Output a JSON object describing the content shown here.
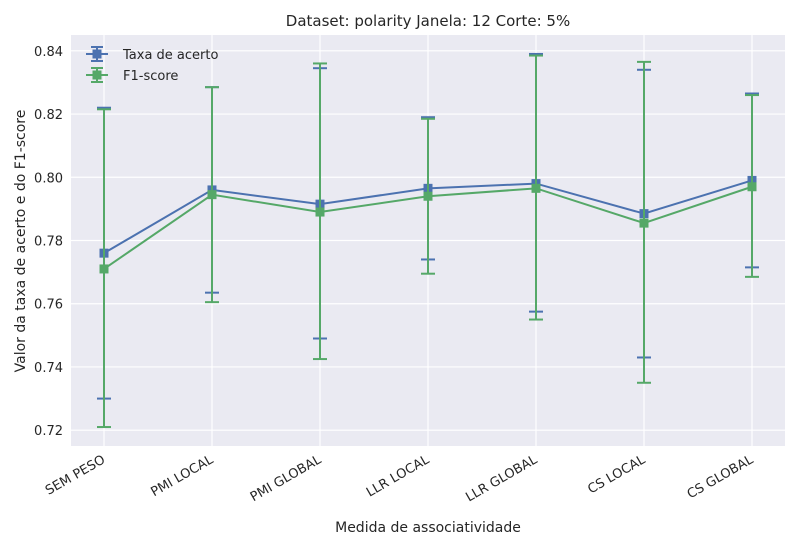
{
  "chart_data": {
    "type": "line",
    "title": "Dataset: polarity Janela: 12 Corte: 5%",
    "xlabel": "Medida de associatividade",
    "ylabel": "Valor da taxa de acerto e do F1-score",
    "categories": [
      "SEM PESO",
      "PMI LOCAL",
      "PMI GLOBAL",
      "LLR LOCAL",
      "LLR GLOBAL",
      "CS LOCAL",
      "CS GLOBAL"
    ],
    "ylim": [
      0.715,
      0.845
    ],
    "yticks": [
      0.72,
      0.74,
      0.76,
      0.78,
      0.8,
      0.82,
      0.84
    ],
    "ytick_labels": [
      "0.72",
      "0.74",
      "0.76",
      "0.78",
      "0.80",
      "0.82",
      "0.84"
    ],
    "grid": true,
    "legend_position": "top-left",
    "series": [
      {
        "name": "Taxa de acerto",
        "color": "#4c72b0",
        "values": [
          0.776,
          0.796,
          0.7915,
          0.7965,
          0.798,
          0.7885,
          0.799
        ],
        "err_low": [
          0.73,
          0.7635,
          0.749,
          0.774,
          0.7575,
          0.743,
          0.7715
        ],
        "err_high": [
          0.822,
          0.8285,
          0.8345,
          0.819,
          0.839,
          0.834,
          0.8265
        ]
      },
      {
        "name": "F1-score",
        "color": "#55a868",
        "values": [
          0.771,
          0.7945,
          0.789,
          0.794,
          0.7965,
          0.7855,
          0.797
        ],
        "err_low": [
          0.721,
          0.7605,
          0.7425,
          0.7695,
          0.755,
          0.735,
          0.7685
        ],
        "err_high": [
          0.8215,
          0.8285,
          0.836,
          0.8185,
          0.8385,
          0.8365,
          0.826
        ]
      }
    ]
  }
}
